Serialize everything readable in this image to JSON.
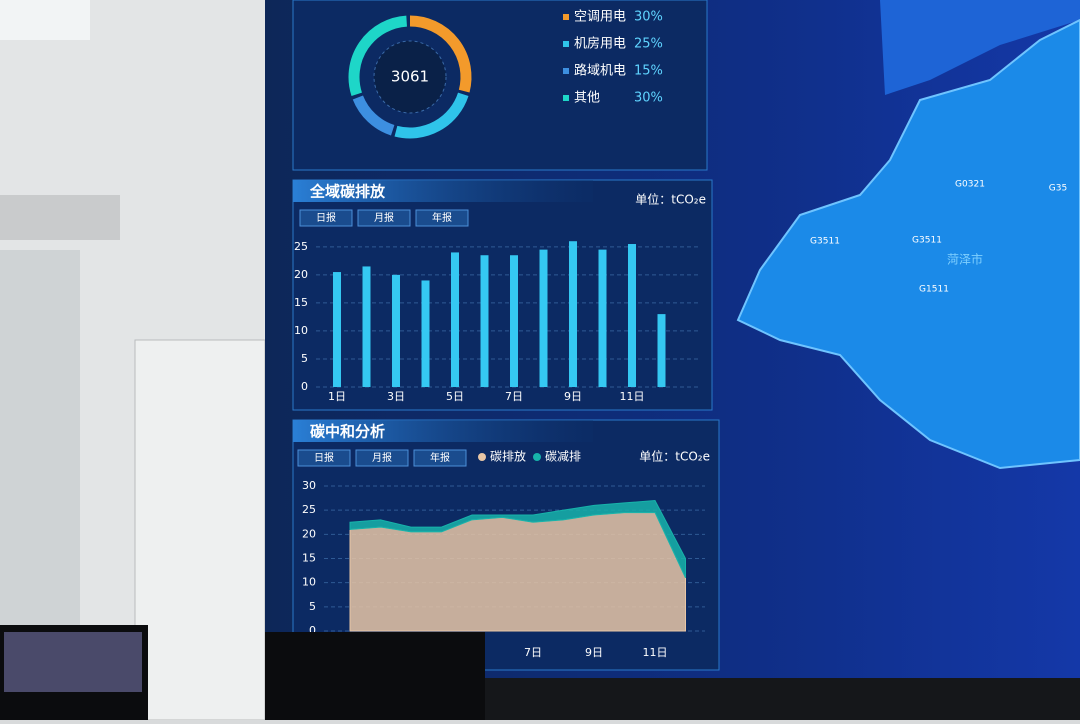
{
  "chart_data": [
    {
      "type": "pie",
      "total": 3061,
      "categories": [
        "空调用电",
        "机房用电",
        "路域机电",
        "其他"
      ],
      "values": [
        30,
        25,
        15,
        30
      ],
      "value_labels": [
        "30%",
        "25%",
        "15%",
        "30%"
      ],
      "colors": [
        "#f39a2b",
        "#2fc4ea",
        "#3d8fe0",
        "#1ed6c8"
      ]
    },
    {
      "type": "bar",
      "title": "全域碳排放",
      "tabs": [
        "日报",
        "月报",
        "年报"
      ],
      "unit": "单位：tCO₂e",
      "categories": [
        "1日",
        null,
        "3日",
        null,
        "5日",
        null,
        "7日",
        null,
        "9日",
        null,
        "11日",
        null
      ],
      "values": [
        20.5,
        21.5,
        20,
        19,
        24,
        23.5,
        23.5,
        24.5,
        26,
        24.5,
        25.5,
        13
      ],
      "color": "#35c8f2",
      "ylim": [
        0,
        28
      ],
      "yticks": [
        0,
        5,
        10,
        15,
        20,
        25
      ],
      "grid": true
    },
    {
      "type": "area",
      "title": "碳中和分析",
      "tabs": [
        "日报",
        "月报",
        "年报"
      ],
      "unit": "单位：tCO₂e",
      "stacked": true,
      "categories": [
        null,
        null,
        null,
        null,
        null,
        null,
        "7日",
        null,
        "9日",
        null,
        "11日",
        null
      ],
      "series": [
        {
          "name": "碳排放",
          "color": "#e8c6a6",
          "values": [
            21,
            21.5,
            20.5,
            20.5,
            23,
            23.5,
            22.5,
            23,
            24,
            24.5,
            24.5,
            11
          ]
        },
        {
          "name": "碳减排",
          "color": "#17b3aa",
          "values": [
            1.5,
            1.5,
            1,
            1,
            1,
            0.5,
            1.5,
            2,
            2,
            2,
            2.5,
            4
          ]
        }
      ],
      "ylim": [
        0,
        30
      ],
      "yticks": [
        0,
        5,
        10,
        15,
        20,
        25,
        30
      ],
      "grid": true
    }
  ],
  "map": {
    "labels": [
      "G0321",
      "G35",
      "G3511",
      "G3511",
      "菏泽市",
      "G1511"
    ]
  }
}
